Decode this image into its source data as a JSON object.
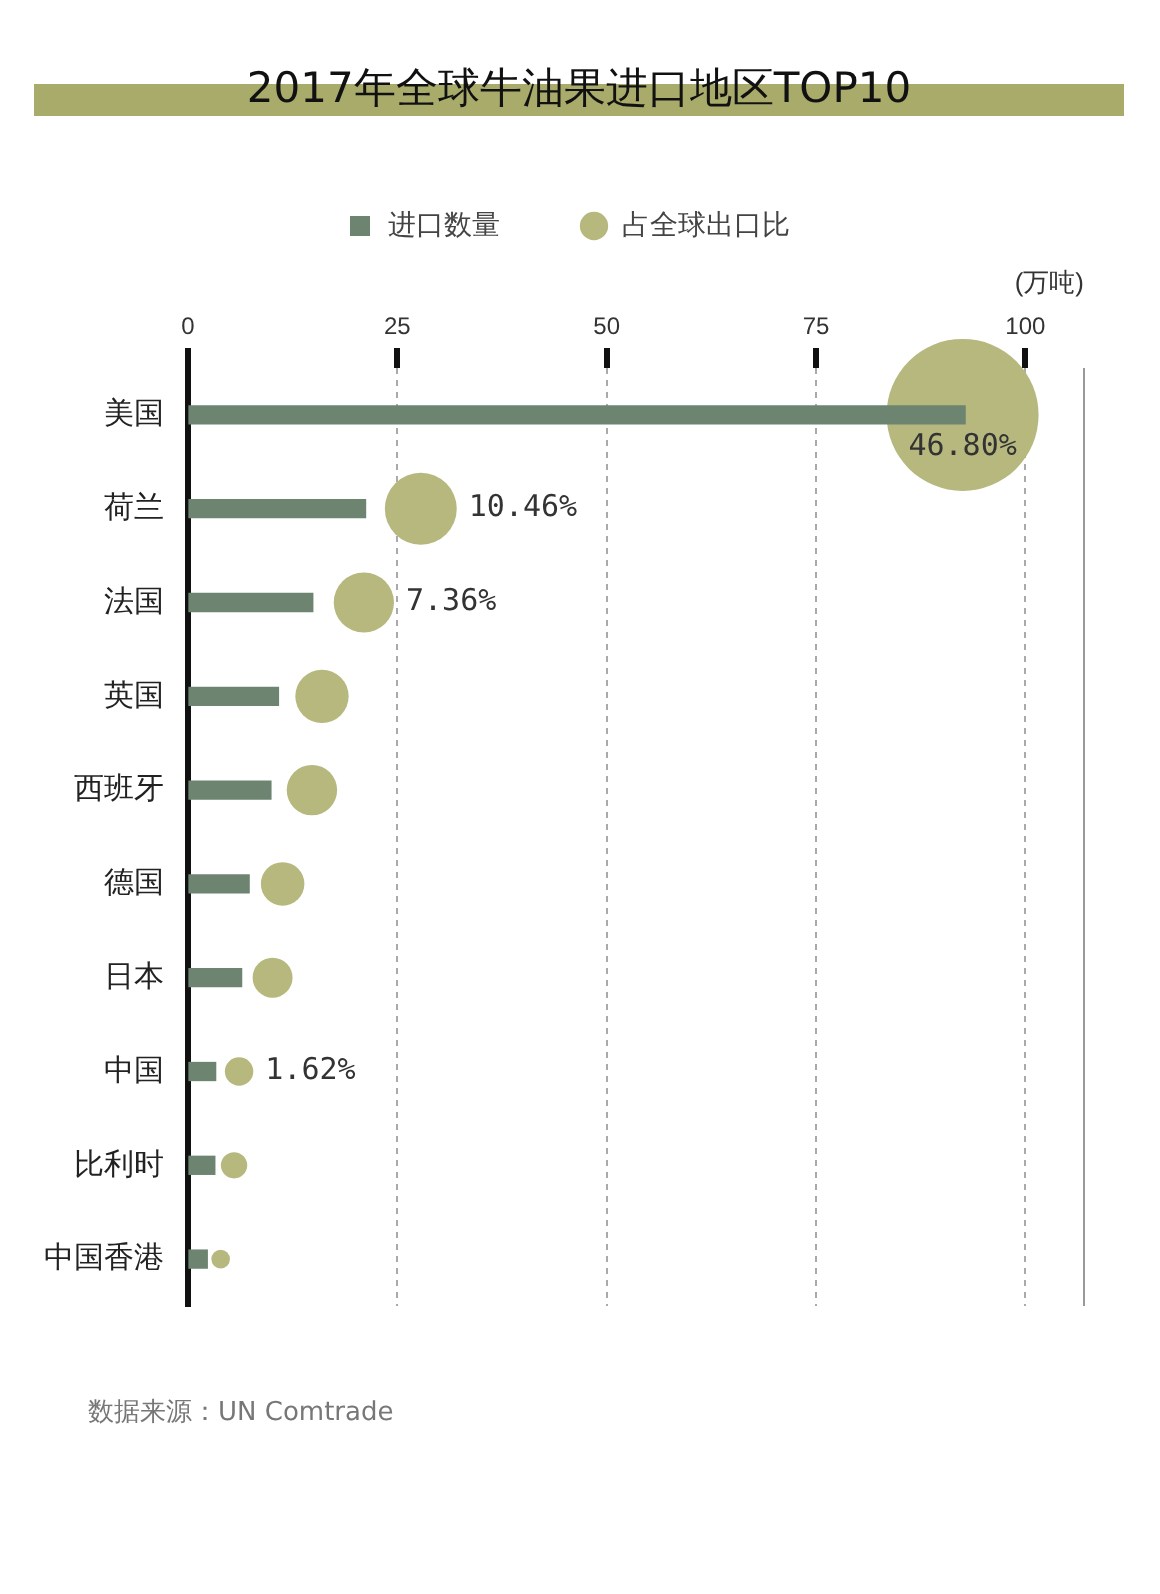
{
  "chart_data": {
    "type": "bar",
    "orientation": "horizontal",
    "title": "2017年全球牛油果进口地区TOP10",
    "xlabel": "(万吨)",
    "categories": [
      "美国",
      "荷兰",
      "法国",
      "英国",
      "西班牙",
      "德国",
      "日本",
      "中国",
      "比利时",
      "中国香港"
    ],
    "series": [
      {
        "name": "进口数量",
        "color": "#6d8470",
        "values": [
          92.8,
          21.2,
          14.9,
          10.8,
          9.9,
          7.3,
          6.4,
          3.3,
          3.2,
          2.3
        ]
      },
      {
        "name": "占全球出口比",
        "type": "bubble",
        "color": "#b6b87e",
        "values": [
          92.5,
          27.8,
          21,
          16,
          14.8,
          11.3,
          10.1,
          6.1,
          5.5,
          3.9
        ],
        "sizes": [
          1,
          0.224,
          0.157,
          0.123,
          0.11,
          0.082,
          0.069,
          0.035,
          0.03,
          0.015
        ]
      }
    ],
    "xlim": [
      0,
      107
    ],
    "xticks": [
      0,
      25,
      50,
      75,
      100
    ],
    "grid": "x",
    "legend": "top",
    "annotations": [
      {
        "text": "46.80%",
        "x": 92.5,
        "y": "美国"
      },
      {
        "text": "10.46%",
        "x": 27.8,
        "y": "荷兰"
      },
      {
        "text": "7.36%",
        "x": 21,
        "y": "法国"
      },
      {
        "text": "1.62%",
        "x": 6.1,
        "y": "中国"
      },
      "数据来源：UN Comtrade"
    ]
  }
}
